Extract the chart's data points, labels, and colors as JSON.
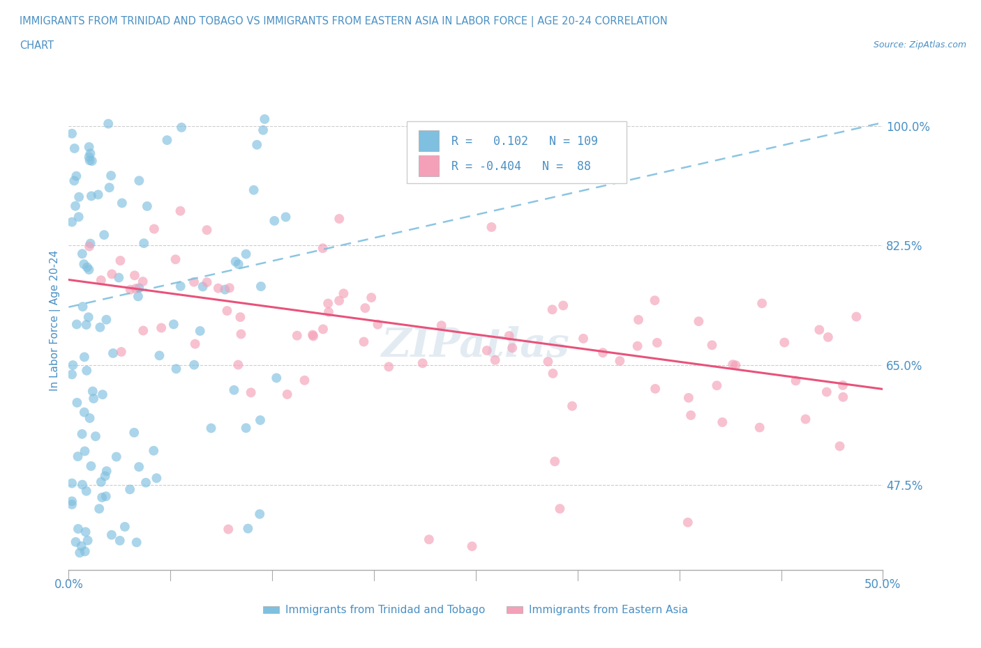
{
  "title_line1": "IMMIGRANTS FROM TRINIDAD AND TOBAGO VS IMMIGRANTS FROM EASTERN ASIA IN LABOR FORCE | AGE 20-24 CORRELATION",
  "title_line2": "CHART",
  "source_text": "Source: ZipAtlas.com",
  "ylabel": "In Labor Force | Age 20-24",
  "xlim": [
    0.0,
    0.5
  ],
  "ylim": [
    0.35,
    1.08
  ],
  "ytick_labels": [
    "47.5%",
    "65.0%",
    "82.5%",
    "100.0%"
  ],
  "ytick_values": [
    0.475,
    0.65,
    0.825,
    1.0
  ],
  "xtick_labels": [
    "0.0%",
    "50.0%"
  ],
  "xtick_values": [
    0.0,
    0.5
  ],
  "blue_color": "#7fbfdf",
  "pink_color": "#f4a0b8",
  "trend_blue_color": "#7fbfdf",
  "trend_pink_color": "#e8527a",
  "title_color": "#4a90c4",
  "source_color": "#4a90c4",
  "axis_label_color": "#4a90c4",
  "tick_label_color": "#4a90c4",
  "legend_R1": "0.102",
  "legend_N1": "109",
  "legend_R2": "-0.404",
  "legend_N2": "88",
  "watermark": "ZIPatlas",
  "grid_color": "#cccccc",
  "blue_trend_x0": 0.0,
  "blue_trend_x1": 0.5,
  "blue_trend_y0": 0.735,
  "blue_trend_y1": 1.005,
  "pink_trend_x0": 0.0,
  "pink_trend_x1": 0.5,
  "pink_trend_y0": 0.775,
  "pink_trend_y1": 0.615
}
